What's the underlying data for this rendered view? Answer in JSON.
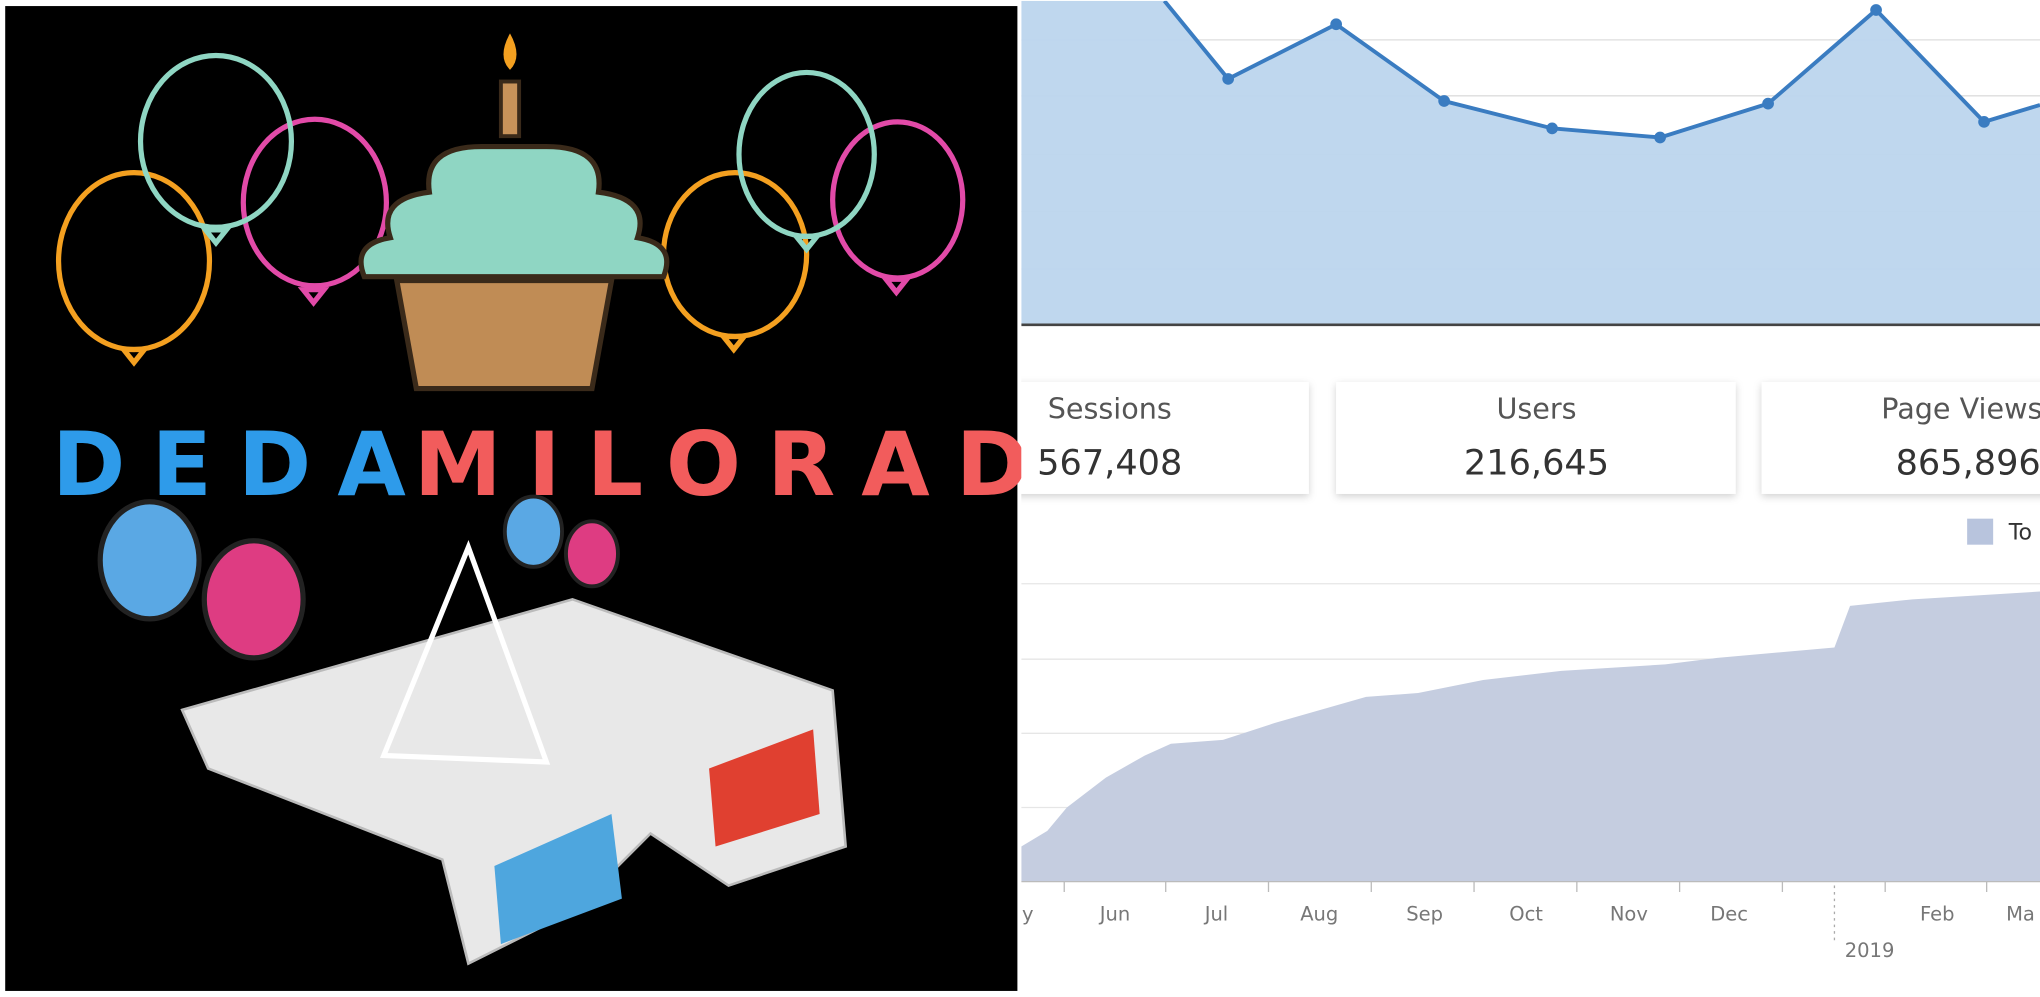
{
  "logo": {
    "title_parts": [
      "DEDA",
      "MILORAD"
    ]
  },
  "stats": [
    {
      "label": "Sessions",
      "value": "567,408"
    },
    {
      "label": "Users",
      "value": "216,645"
    },
    {
      "label": "Page Views",
      "value": "865,896"
    }
  ],
  "cumulative_chart": {
    "legend": "To",
    "x_labels": [
      "y",
      "Jun",
      "Jul",
      "Aug",
      "Sep",
      "Oct",
      "Nov",
      "Dec",
      "Feb",
      "Ma"
    ],
    "year_label": "2019"
  }
}
